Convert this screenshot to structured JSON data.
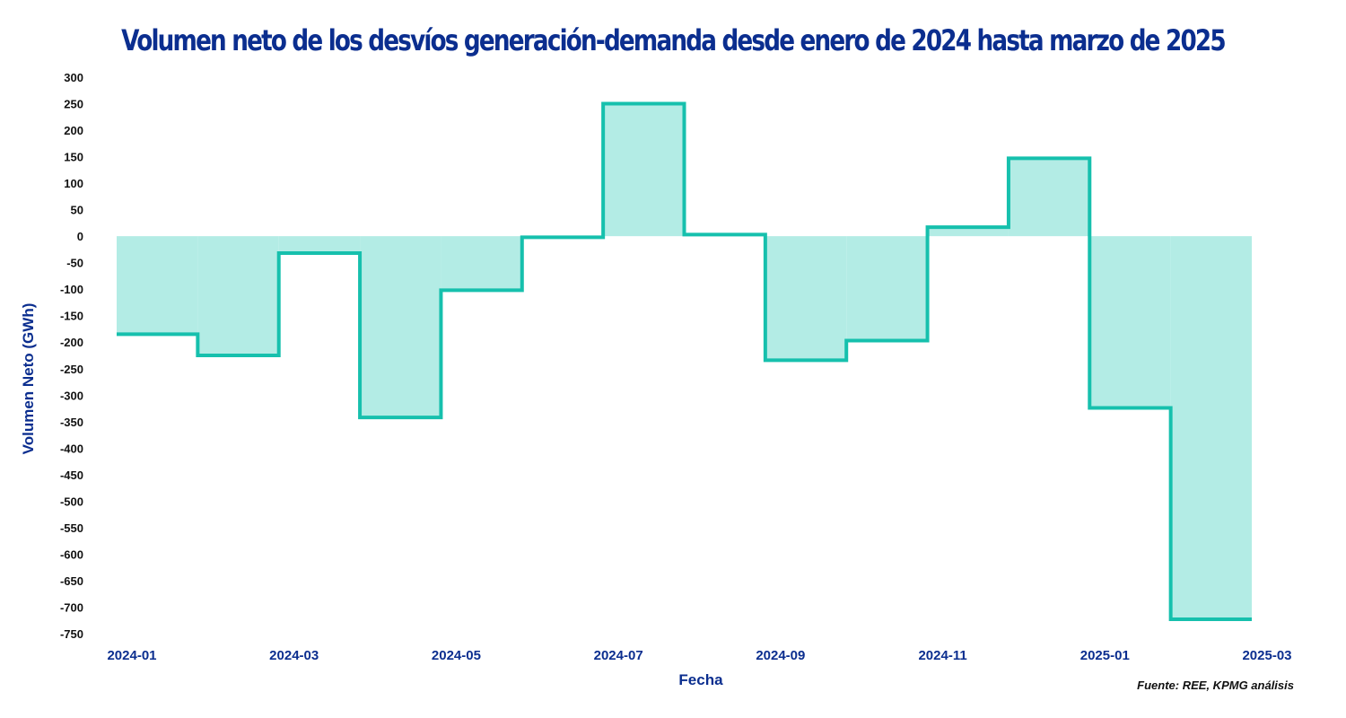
{
  "chart_data": {
    "type": "area",
    "style": "step",
    "title": "Volumen neto de los desvíos generación-demanda desde enero de 2024 hasta marzo de 2025",
    "xlabel": "Fecha",
    "ylabel": "Volumen Neto (GWh)",
    "source": "Fuente: REE, KPMG análisis",
    "x": [
      "2024-01",
      "2024-02",
      "2024-03",
      "2024-04",
      "2024-05",
      "2024-06",
      "2024-07",
      "2024-08",
      "2024-09",
      "2024-10",
      "2024-11",
      "2024-12",
      "2025-01",
      "2025-02"
    ],
    "x_end": "2025-03",
    "values": [
      -185,
      -225,
      -32,
      -342,
      -102,
      -2,
      250,
      3,
      -234,
      -197,
      17,
      147,
      -324,
      -723
    ],
    "x_tick_labels": [
      "2024-01",
      "2024-03",
      "2024-05",
      "2024-07",
      "2024-09",
      "2024-11",
      "2025-01",
      "2025-03"
    ],
    "y_tick_labels": [
      "300",
      "250",
      "200",
      "150",
      "100",
      "50",
      "0",
      "-50",
      "-100",
      "-150",
      "-200",
      "-250",
      "-300",
      "-350",
      "-400",
      "-450",
      "-500",
      "-550",
      "-600",
      "-650",
      "-700",
      "-750"
    ],
    "ylim": [
      -750,
      300
    ],
    "grid": false,
    "colors": {
      "line": "#16c0ad",
      "fill": "#b3ece5",
      "title": "#0b2e8f",
      "axis_text": "#0b2e8f",
      "tick_text": "#111111"
    }
  }
}
